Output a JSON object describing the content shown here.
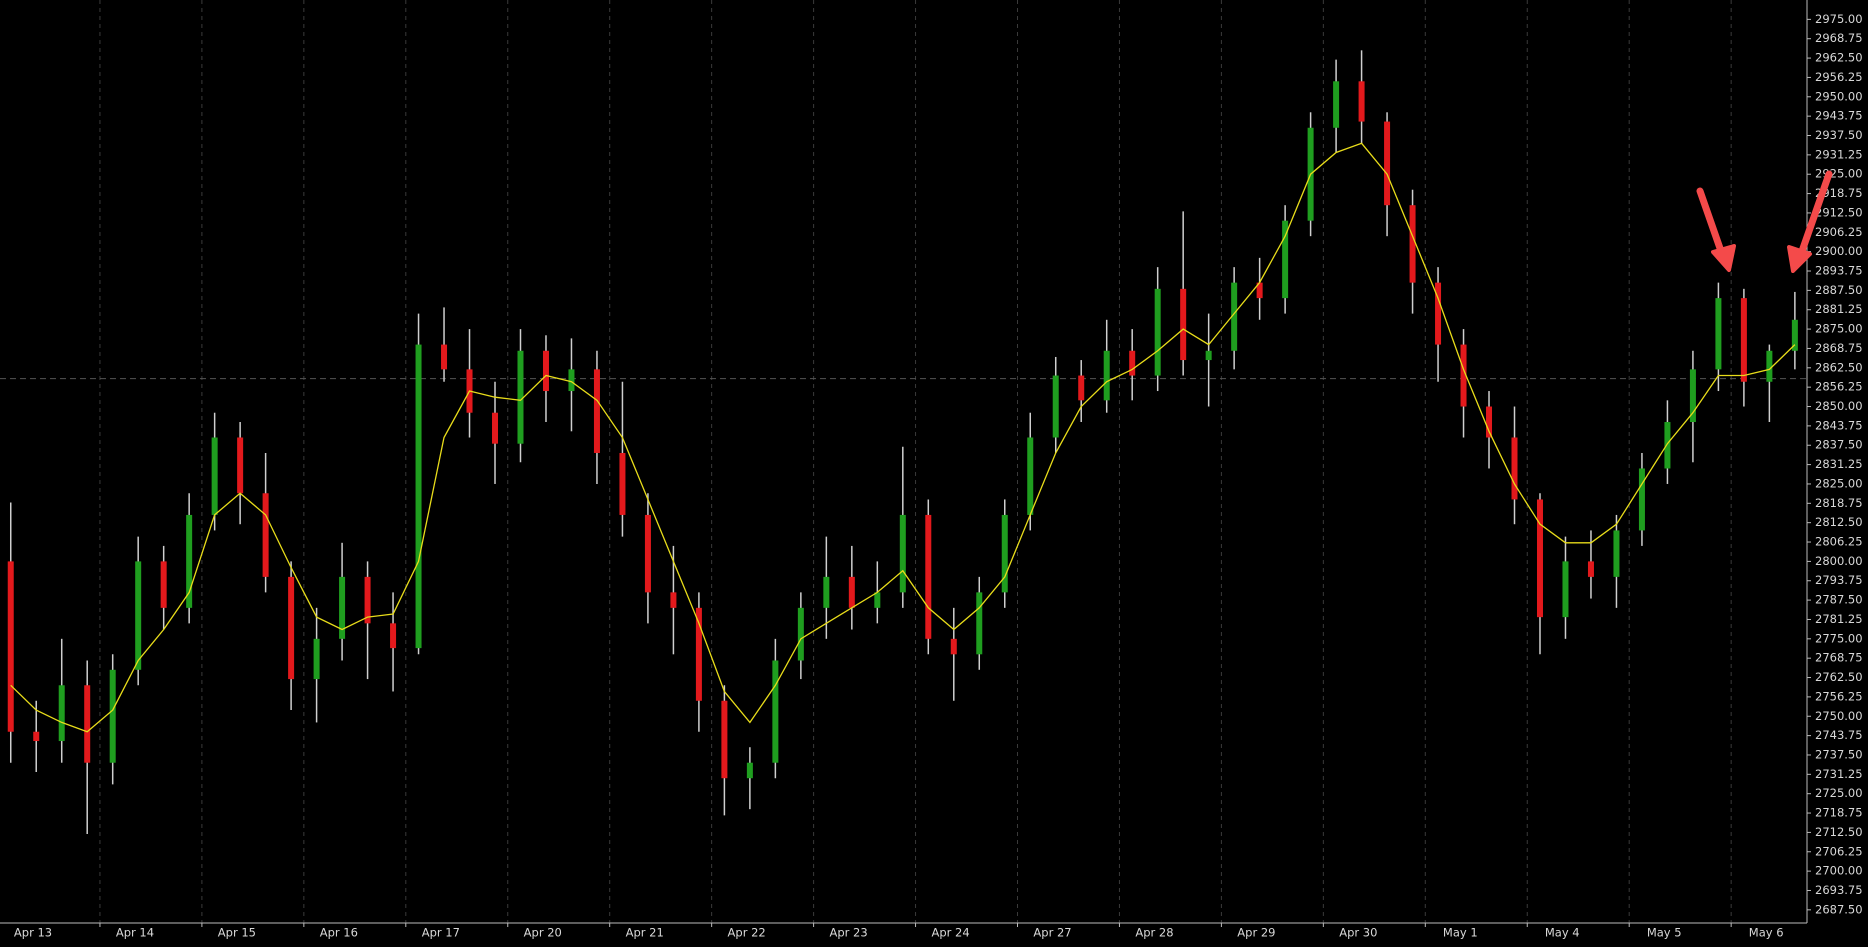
{
  "chart_data": {
    "type": "candlestick",
    "categories": [
      "Apr 13",
      "Apr 14",
      "Apr 15",
      "Apr 16",
      "Apr 17",
      "Apr 20",
      "Apr 21",
      "Apr 22",
      "Apr 23",
      "Apr 24",
      "Apr 27",
      "Apr 28",
      "Apr 29",
      "Apr 30",
      "May 1",
      "May 4",
      "May 5",
      "May 6"
    ],
    "open": [
      2800,
      2745,
      2742,
      2760,
      2735,
      2765,
      2800,
      2785,
      2815,
      2840,
      2822,
      2795,
      2762,
      2775,
      2795,
      2780,
      2772,
      2870,
      2862,
      2848,
      2838,
      2868,
      2855,
      2862,
      2835,
      2815,
      2790,
      2785,
      2755,
      2730,
      2735,
      2768,
      2785,
      2795,
      2785,
      2790,
      2815,
      2775,
      2770,
      2790,
      2815,
      2840,
      2860,
      2852,
      2868,
      2860,
      2888,
      2865,
      2868,
      2890,
      2885,
      2910,
      2940,
      2955,
      2942,
      2915,
      2890,
      2870,
      2850,
      2840,
      2820,
      2782,
      2800,
      2795,
      2810,
      2830,
      2845,
      2862,
      2885,
      2858,
      2868
    ],
    "high": [
      2819,
      2755,
      2775,
      2768,
      2770,
      2808,
      2805,
      2822,
      2848,
      2845,
      2835,
      2800,
      2785,
      2806,
      2800,
      2790,
      2880,
      2882,
      2875,
      2858,
      2875,
      2873,
      2872,
      2868,
      2858,
      2822,
      2805,
      2790,
      2760,
      2740,
      2775,
      2790,
      2808,
      2805,
      2800,
      2837,
      2820,
      2785,
      2795,
      2820,
      2848,
      2866,
      2865,
      2878,
      2875,
      2895,
      2913,
      2880,
      2895,
      2898,
      2915,
      2945,
      2962,
      2965,
      2945,
      2920,
      2895,
      2875,
      2855,
      2850,
      2822,
      2808,
      2810,
      2815,
      2835,
      2852,
      2868,
      2890,
      2888,
      2870,
      2887
    ],
    "low": [
      2735,
      2732,
      2735,
      2712,
      2728,
      2760,
      2778,
      2780,
      2810,
      2812,
      2790,
      2752,
      2748,
      2768,
      2762,
      2758,
      2770,
      2858,
      2840,
      2825,
      2832,
      2845,
      2842,
      2825,
      2808,
      2780,
      2770,
      2745,
      2718,
      2720,
      2730,
      2762,
      2775,
      2778,
      2780,
      2785,
      2770,
      2755,
      2765,
      2785,
      2810,
      2835,
      2845,
      2848,
      2852,
      2855,
      2860,
      2850,
      2862,
      2878,
      2880,
      2905,
      2932,
      2935,
      2905,
      2880,
      2858,
      2840,
      2830,
      2812,
      2770,
      2775,
      2788,
      2785,
      2805,
      2825,
      2832,
      2855,
      2850,
      2845,
      2862
    ],
    "close": [
      2745,
      2742,
      2760,
      2735,
      2765,
      2800,
      2785,
      2815,
      2840,
      2822,
      2795,
      2762,
      2775,
      2795,
      2780,
      2772,
      2870,
      2862,
      2848,
      2838,
      2868,
      2855,
      2862,
      2835,
      2815,
      2790,
      2785,
      2755,
      2730,
      2735,
      2768,
      2785,
      2795,
      2785,
      2790,
      2815,
      2775,
      2770,
      2790,
      2815,
      2840,
      2860,
      2852,
      2868,
      2860,
      2888,
      2865,
      2868,
      2890,
      2885,
      2910,
      2940,
      2955,
      2942,
      2915,
      2890,
      2870,
      2850,
      2840,
      2820,
      2782,
      2800,
      2795,
      2810,
      2830,
      2845,
      2862,
      2885,
      2858,
      2868,
      2878
    ],
    "colors": {
      "up": "#1f9e1f",
      "down": "#e3191c",
      "wick": "#cfcfcf"
    },
    "moving_average": {
      "color": "#e8dc1a",
      "values": [
        2760,
        2752,
        2748,
        2745,
        2752,
        2768,
        2778,
        2790,
        2815,
        2822,
        2815,
        2798,
        2782,
        2778,
        2782,
        2783,
        2800,
        2840,
        2855,
        2853,
        2852,
        2860,
        2858,
        2852,
        2840,
        2820,
        2800,
        2780,
        2758,
        2748,
        2760,
        2775,
        2780,
        2785,
        2790,
        2797,
        2785,
        2778,
        2785,
        2795,
        2815,
        2835,
        2850,
        2858,
        2862,
        2868,
        2875,
        2870,
        2880,
        2890,
        2905,
        2925,
        2932,
        2935,
        2925,
        2905,
        2885,
        2862,
        2842,
        2825,
        2812,
        2806,
        2806,
        2812,
        2825,
        2838,
        2848,
        2860,
        2860,
        2862,
        2870
      ]
    },
    "price_line": 2859,
    "ylim": [
      2683.25,
      2981.25
    ],
    "grid": "x",
    "yticks": [
      {
        "value": 2687.5,
        "label": "2687.50"
      },
      {
        "value": 2693.75,
        "label": "2693.75"
      },
      {
        "value": 2700,
        "label": "2700.00"
      },
      {
        "value": 2706.25,
        "label": "2706.25"
      },
      {
        "value": 2712.5,
        "label": "2712.50"
      },
      {
        "value": 2718.75,
        "label": "2718.75"
      },
      {
        "value": 2725,
        "label": "2725.00"
      },
      {
        "value": 2731.25,
        "label": "2731.25"
      },
      {
        "value": 2737.5,
        "label": "2737.50"
      },
      {
        "value": 2743.75,
        "label": "2743.75"
      },
      {
        "value": 2750,
        "label": "2750.00"
      },
      {
        "value": 2756.25,
        "label": "2756.25"
      },
      {
        "value": 2762.5,
        "label": "2762.50"
      },
      {
        "value": 2768.75,
        "label": "2768.75"
      },
      {
        "value": 2775,
        "label": "2775.00"
      },
      {
        "value": 2781.25,
        "label": "2781.25"
      },
      {
        "value": 2787.5,
        "label": "2787.50"
      },
      {
        "value": 2793.75,
        "label": "2793.75"
      },
      {
        "value": 2800,
        "label": "2800.00"
      },
      {
        "value": 2806.25,
        "label": "2806.25"
      },
      {
        "value": 2812.5,
        "label": "2812.50"
      },
      {
        "value": 2818.75,
        "label": "2818.75"
      },
      {
        "value": 2825,
        "label": "2825.00"
      },
      {
        "value": 2831.25,
        "label": "2831.25"
      },
      {
        "value": 2837.5,
        "label": "2837.50"
      },
      {
        "value": 2843.75,
        "label": "2843.75"
      },
      {
        "value": 2850,
        "label": "2850.00"
      },
      {
        "value": 2856.25,
        "label": "2856.25"
      },
      {
        "value": 2862.5,
        "label": "2862.50"
      },
      {
        "value": 2868.75,
        "label": "2868.75"
      },
      {
        "value": 2875,
        "label": "2875.00"
      },
      {
        "value": 2881.25,
        "label": "2881.25"
      },
      {
        "value": 2887.5,
        "label": "2887.50"
      },
      {
        "value": 2893.75,
        "label": "2893.75"
      },
      {
        "value": 2900,
        "label": "2900.00"
      },
      {
        "value": 2906.25,
        "label": "2906.25"
      },
      {
        "value": 2912.5,
        "label": "2912.50"
      },
      {
        "value": 2918.75,
        "label": "2918.75"
      },
      {
        "value": 2925,
        "label": "2925.00"
      },
      {
        "value": 2931.25,
        "label": "2931.25"
      },
      {
        "value": 2937.5,
        "label": "2937.50"
      },
      {
        "value": 2943.75,
        "label": "2943.75"
      },
      {
        "value": 2950,
        "label": "2950.00"
      },
      {
        "value": 2956.25,
        "label": "2956.25"
      },
      {
        "value": 2962.5,
        "label": "2962.50"
      },
      {
        "value": 2968.75,
        "label": "2968.75"
      },
      {
        "value": 2975,
        "label": "2975.00"
      }
    ]
  }
}
